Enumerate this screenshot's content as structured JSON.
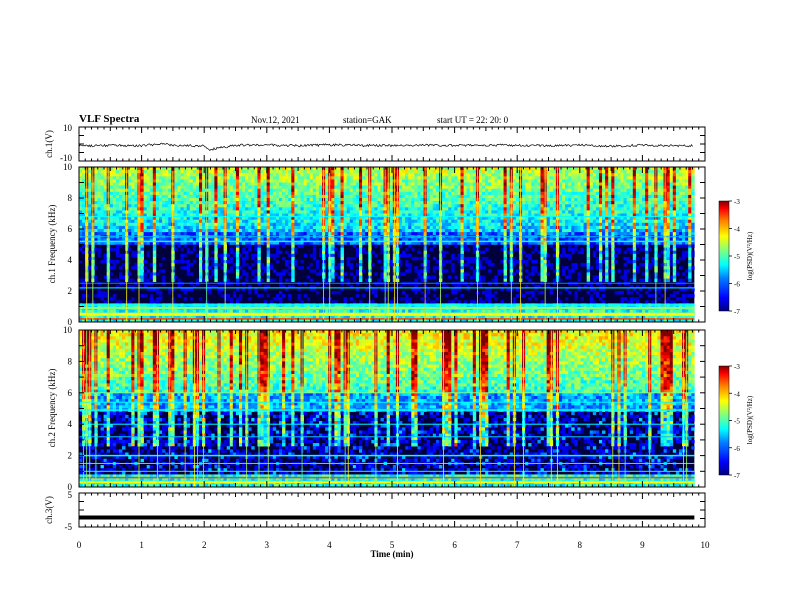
{
  "header": {
    "title": "VLF Spectra",
    "date": "Nov.12, 2021",
    "station": "station=GAK",
    "start": "start UT = 22: 20: 0"
  },
  "chart_data": [
    {
      "type": "line",
      "name": "ch1-waveform",
      "ylabel": "ch.1(V)",
      "ylim": [
        -10,
        10
      ],
      "yticks": [
        "10",
        "-10"
      ],
      "xlim": [
        0,
        10
      ],
      "x": [
        0,
        0.5,
        1,
        1.4,
        1.5,
        2,
        2.05,
        2.5,
        3,
        3.5,
        4,
        4.5,
        5,
        5.5,
        6,
        6.5,
        7,
        7.5,
        8,
        8.5,
        9,
        9.5,
        9.8
      ],
      "values": [
        -1.2,
        -0.8,
        -1.0,
        0.3,
        -1.1,
        -0.9,
        -3.5,
        -0.7,
        -0.6,
        -1.0,
        -0.5,
        -0.8,
        -0.9,
        -0.7,
        -0.9,
        -0.6,
        -0.8,
        -1.0,
        -0.7,
        -1.2,
        -0.8,
        -0.9,
        -1.0
      ]
    },
    {
      "type": "heatmap",
      "name": "ch1-spectrogram",
      "ylabel": "ch.1 Frequency (kHz)",
      "ylim": [
        0,
        10
      ],
      "yticks": [
        "0",
        "2",
        "4",
        "6",
        "8",
        "10"
      ],
      "xlim": [
        0,
        9.83
      ],
      "colorbar": {
        "label": "log(PSD)(V²/Hz)",
        "range": [
          -7,
          -3
        ],
        "ticks": [
          "-3",
          "-4",
          "-5",
          "-6",
          "-7"
        ]
      }
    },
    {
      "type": "heatmap",
      "name": "ch2-spectrogram",
      "ylabel": "ch.2 Frequency (kHz)",
      "ylim": [
        0,
        10
      ],
      "yticks": [
        "0",
        "2",
        "4",
        "6",
        "8",
        "10"
      ],
      "xlim": [
        0,
        9.83
      ],
      "colorbar": {
        "label": "log(PSD)(V²/Hz)",
        "range": [
          -7,
          -3
        ],
        "ticks": [
          "-3",
          "-4",
          "-5",
          "-6",
          "-7"
        ]
      }
    },
    {
      "type": "line",
      "name": "ch3-waveform",
      "ylabel": "ch.3(V)",
      "ylim": [
        -5,
        5
      ],
      "yticks": [
        "5",
        "-5"
      ],
      "xlim": [
        0,
        10
      ],
      "x": [
        0,
        9.83
      ],
      "values": [
        -2.2,
        -2.2
      ]
    }
  ],
  "xaxis": {
    "label": "Time (min)",
    "ticks": [
      "0",
      "1",
      "2",
      "3",
      "4",
      "5",
      "6",
      "7",
      "8",
      "9",
      "10"
    ],
    "range": [
      0,
      10
    ]
  },
  "colors": {
    "colormap": [
      "#00007f",
      "#0000ff",
      "#007fff",
      "#00ffff",
      "#7fff7f",
      "#ffff00",
      "#ff7f00",
      "#ff0000",
      "#7f0000"
    ],
    "background": "#00003a",
    "trace": "#000000"
  }
}
